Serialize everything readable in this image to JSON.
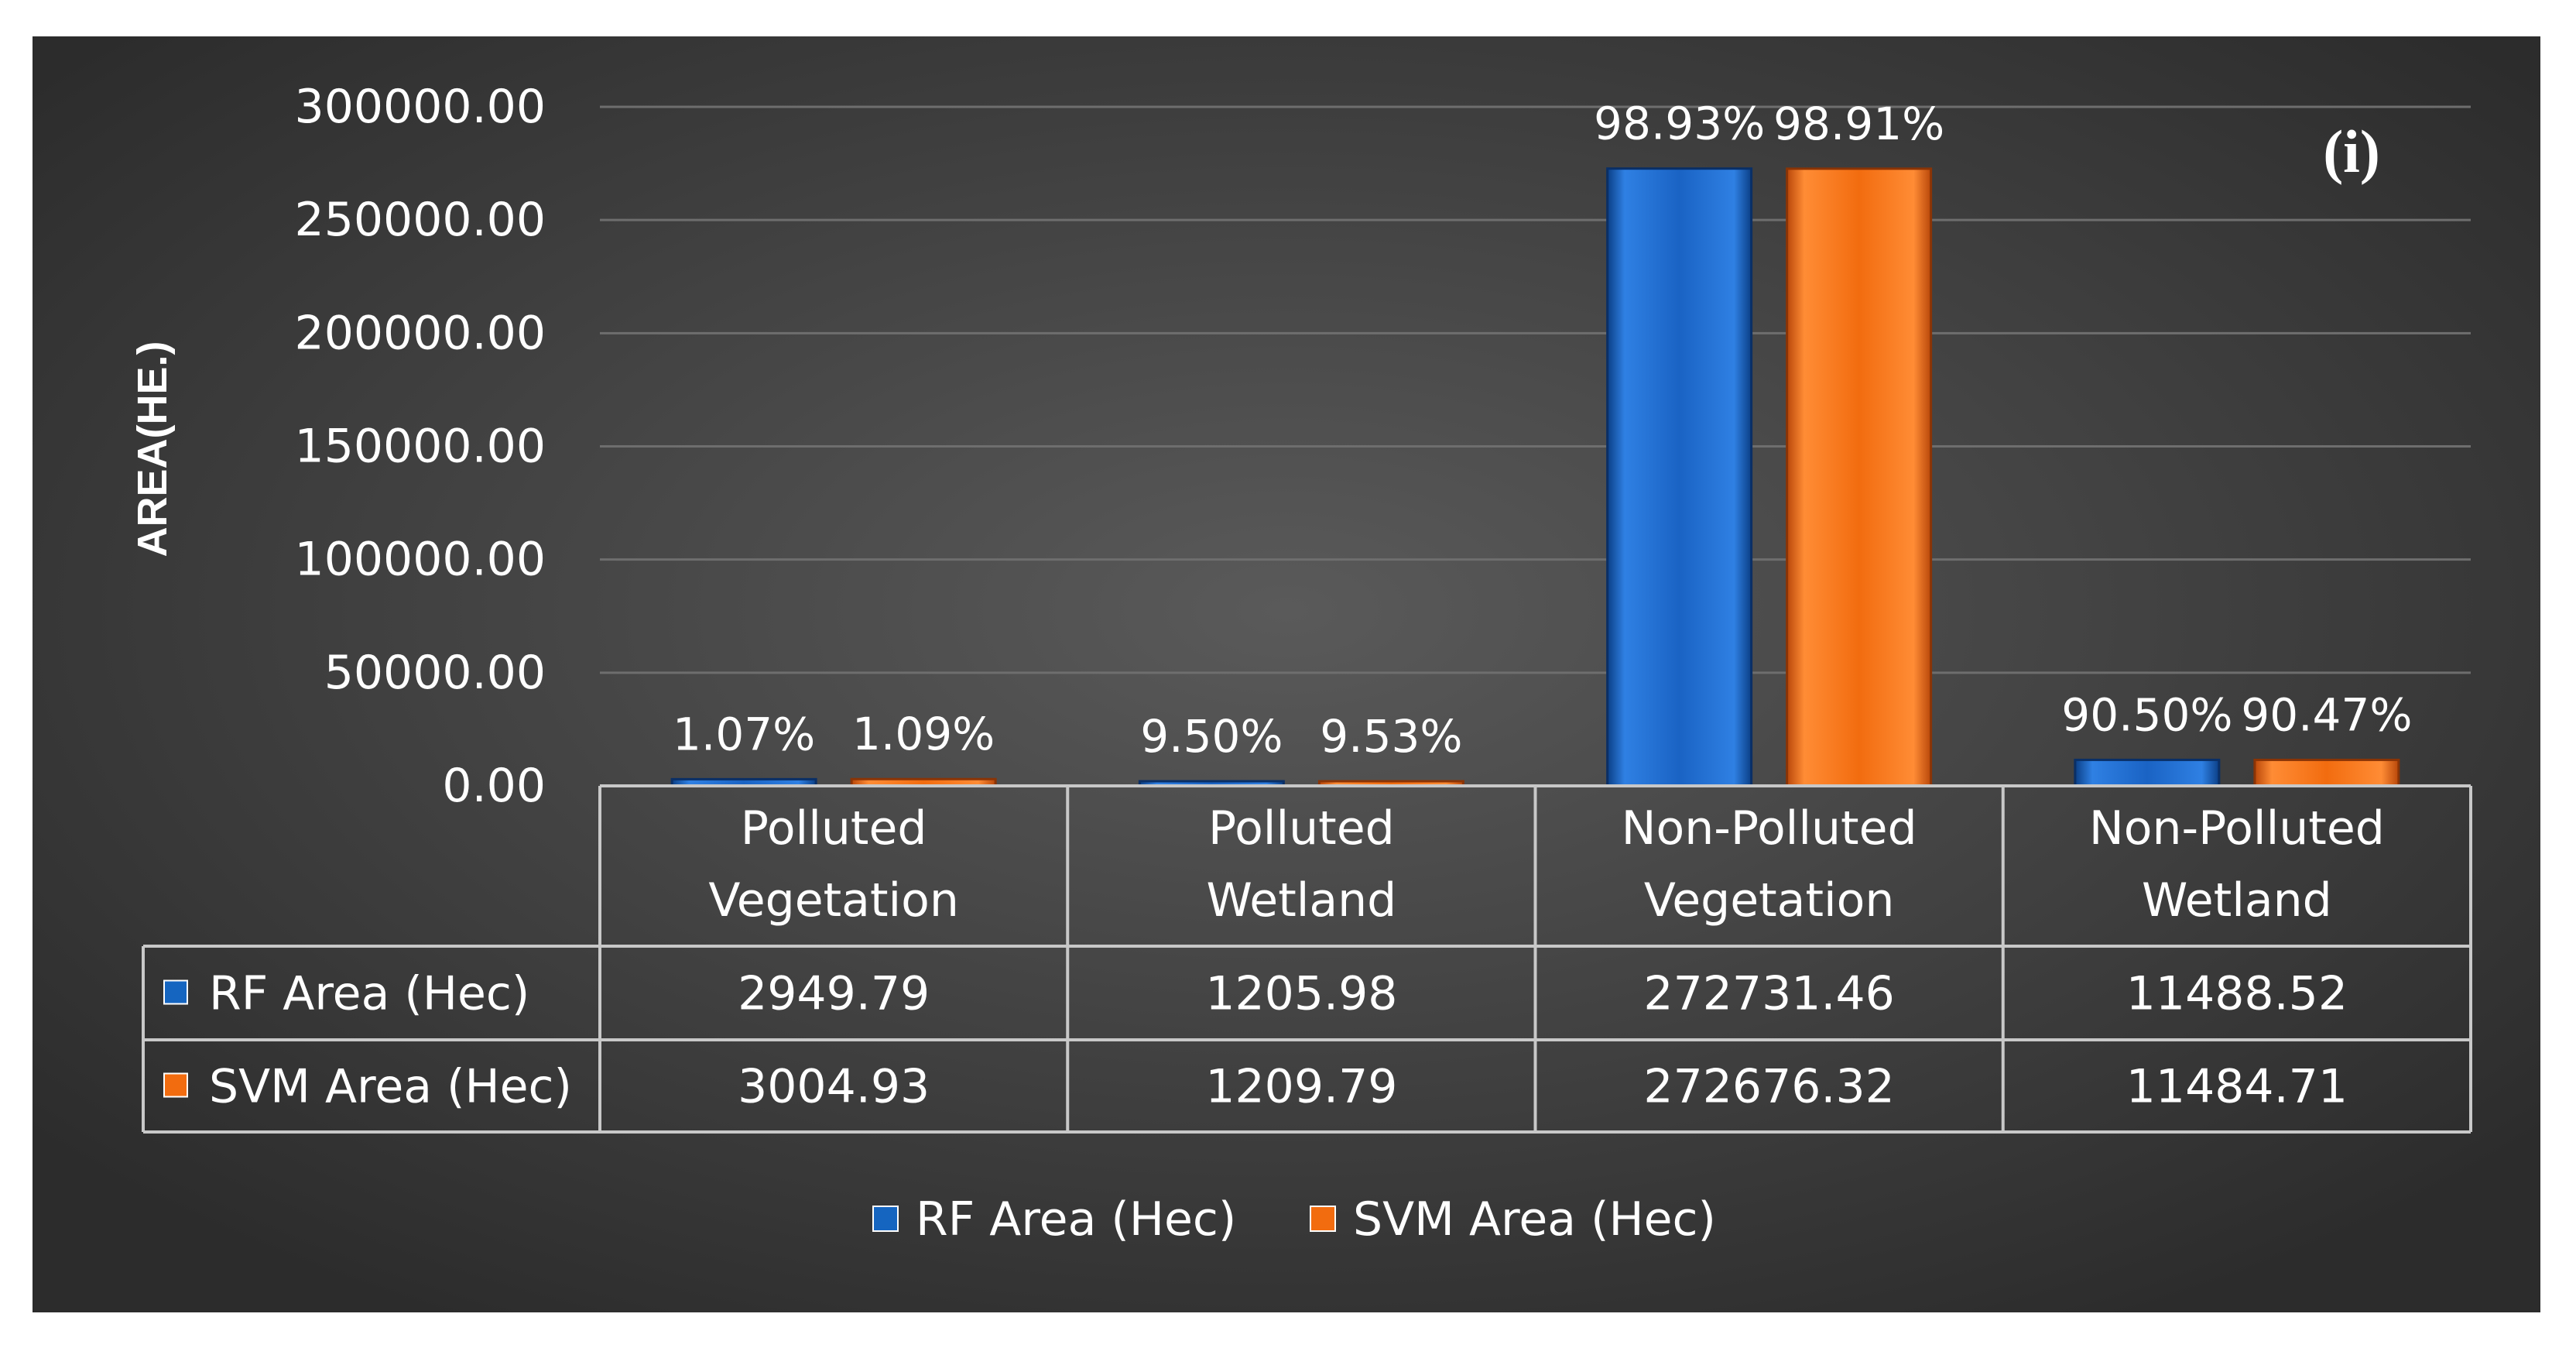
{
  "panel_label": "(i)",
  "chart_data": {
    "type": "bar",
    "title": "",
    "xlabel": "",
    "ylabel": "AREA(HE.)",
    "ylim": [
      0,
      300000
    ],
    "yticks": [
      "0.00",
      "50000.00",
      "100000.00",
      "150000.00",
      "200000.00",
      "250000.00",
      "300000.00"
    ],
    "grid": true,
    "legend_position": "bottom",
    "data_table": true,
    "categories": [
      [
        "Polluted",
        "Vegetation"
      ],
      [
        "Polluted",
        "Wetland"
      ],
      [
        "Non-Polluted",
        "Vegetation"
      ],
      [
        "Non-Polluted",
        "Wetland"
      ]
    ],
    "series": [
      {
        "name": "RF Area (Hec)",
        "color": "#1565C0",
        "values": [
          2949.79,
          1205.98,
          272731.46,
          11488.52
        ],
        "table_values": [
          "2949.79",
          "1205.98",
          "272731.46",
          "11488.52"
        ],
        "data_labels": [
          "1.07%",
          "9.50%",
          "98.93%",
          "90.50%"
        ]
      },
      {
        "name": "SVM Area (Hec)",
        "color": "#F26C0F",
        "values": [
          3004.93,
          1209.79,
          272676.32,
          11484.71
        ],
        "table_values": [
          "3004.93",
          "1209.79",
          "272676.32",
          "11484.71"
        ],
        "data_labels": [
          "1.09%",
          "9.53%",
          "98.91%",
          "90.47%"
        ]
      }
    ]
  }
}
